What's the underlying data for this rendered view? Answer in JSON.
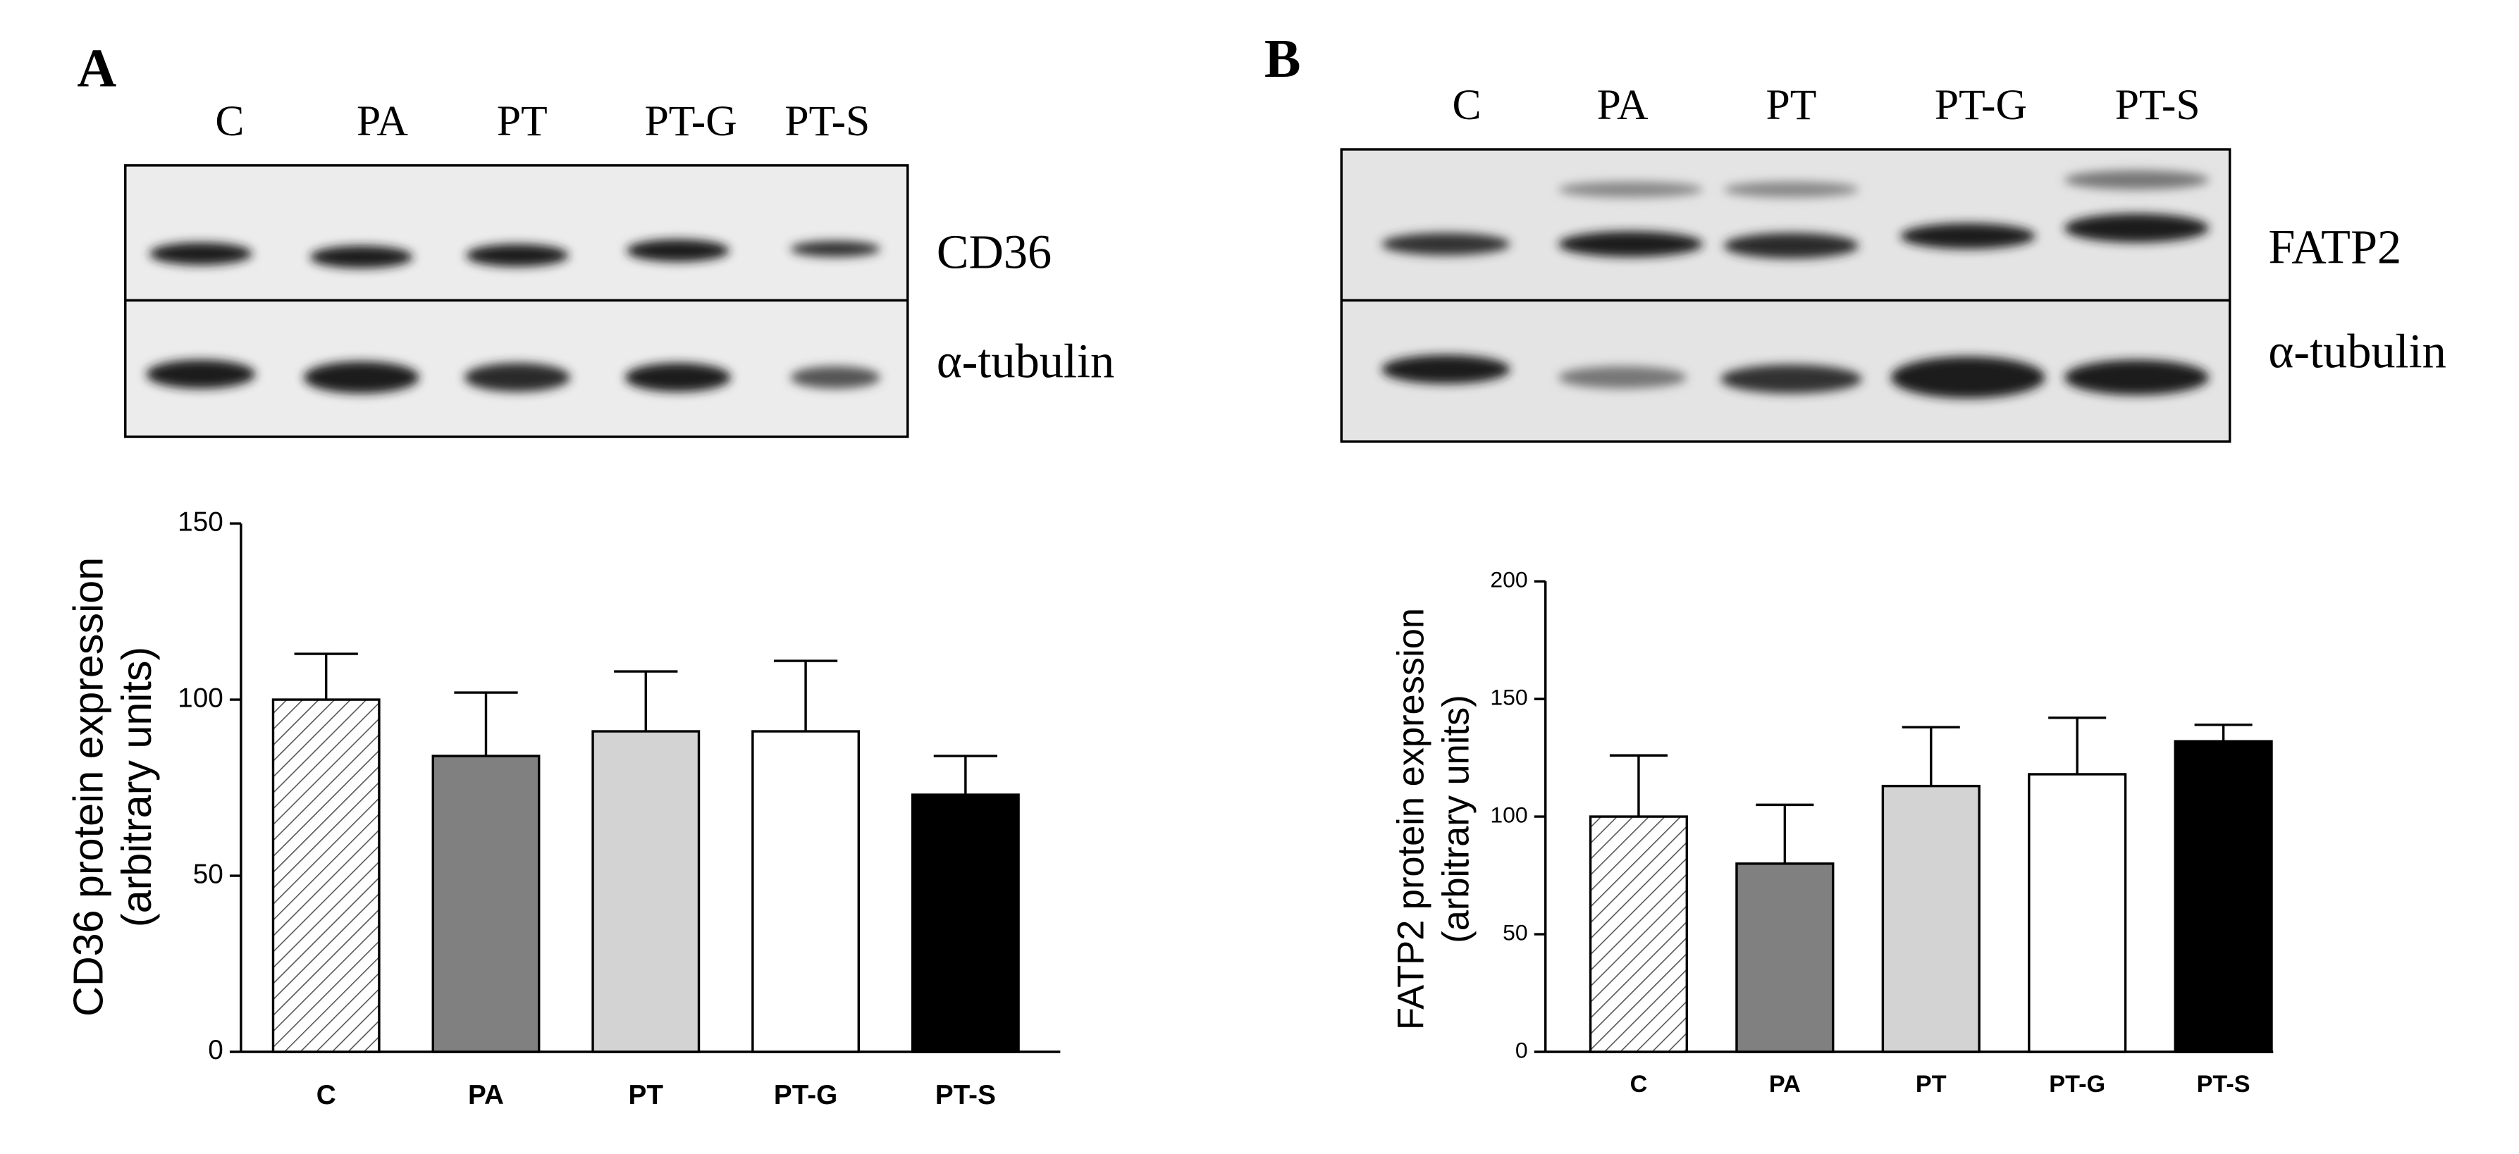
{
  "panels": [
    {
      "letter": "A",
      "lanes": [
        "C",
        "PA",
        "PT",
        "PT-G",
        "PT-S"
      ],
      "bands": [
        "CD36",
        "α-tubulin"
      ]
    },
    {
      "letter": "B",
      "lanes": [
        "C",
        "PA",
        "PT",
        "PT-G",
        "PT-S"
      ],
      "bands": [
        "FATP2",
        "α-tubulin"
      ]
    }
  ],
  "chart_data": [
    {
      "type": "bar",
      "ylabel": [
        "CD36 protein expression",
        "(arbitrary units)"
      ],
      "categories": [
        "C",
        "PA",
        "PT",
        "PT-G",
        "PT-S"
      ],
      "values": [
        100,
        84,
        91,
        91,
        73
      ],
      "errors": [
        13,
        18,
        17,
        20,
        11
      ],
      "colors": [
        "#ffffff",
        "#808080",
        "#d3d3d3",
        "#ffffff",
        "#000000"
      ],
      "hatched": [
        true,
        false,
        false,
        false,
        false
      ],
      "ylim": [
        0,
        150
      ],
      "yticks": [
        0,
        50,
        100,
        150
      ]
    },
    {
      "type": "bar",
      "ylabel": [
        "FATP2 protein expression",
        "(arbitrary units)"
      ],
      "categories": [
        "C",
        "PA",
        "PT",
        "PT-G",
        "PT-S"
      ],
      "values": [
        100,
        80,
        113,
        118,
        132
      ],
      "errors": [
        26,
        25,
        25,
        24,
        7
      ],
      "colors": [
        "#ffffff",
        "#808080",
        "#d3d3d3",
        "#ffffff",
        "#000000"
      ],
      "hatched": [
        true,
        false,
        false,
        false,
        false
      ],
      "ylim": [
        0,
        200
      ],
      "yticks": [
        0,
        50,
        100,
        150,
        200
      ]
    }
  ]
}
